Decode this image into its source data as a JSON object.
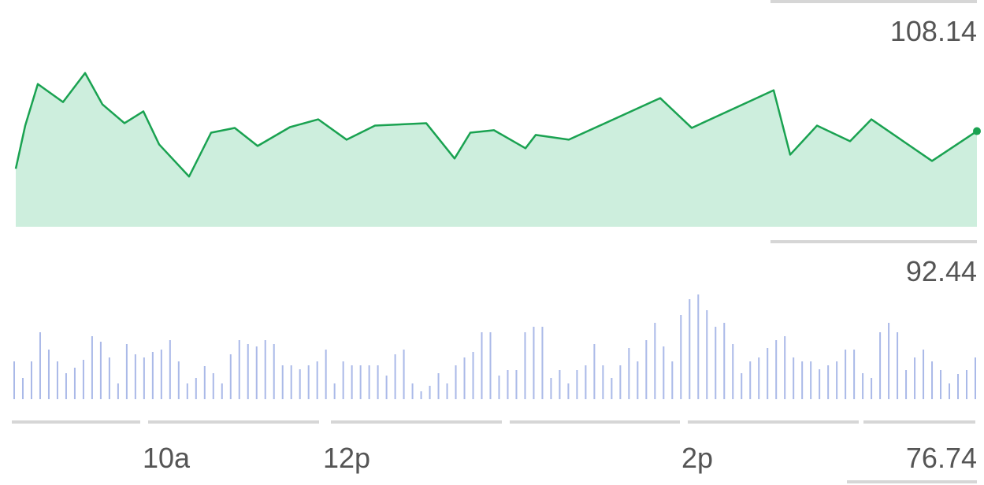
{
  "chart_data": [
    {
      "type": "area",
      "color": "#1aa251",
      "fill": "#cdeedd",
      "x": [
        0,
        12,
        28,
        60,
        88,
        110,
        138,
        162,
        182,
        220,
        248,
        278,
        307,
        348,
        384,
        420,
        456,
        521,
        557,
        577,
        607,
        647,
        660,
        702,
        818,
        858,
        962,
        983,
        1017,
        1059,
        1086,
        1163,
        1220
      ],
      "values": [
        97.21,
        100.03,
        102.75,
        101.57,
        103.47,
        101.42,
        100.19,
        100.96,
        98.8,
        96.7,
        99.57,
        99.88,
        98.7,
        99.93,
        100.44,
        99.11,
        100.03,
        100.19,
        97.88,
        99.57,
        99.73,
        98.55,
        99.42,
        99.11,
        101.83,
        99.88,
        102.34,
        98.13,
        100.03,
        99.01,
        100.44,
        97.72,
        99.67
      ],
      "xlim": [
        0,
        1220
      ],
      "ylim": [
        76.74,
        108.14
      ],
      "yticks": [
        108.14,
        92.44,
        76.74
      ],
      "xticks": [
        {
          "value": 191,
          "label": "10a"
        },
        {
          "value": 420,
          "label": "12p"
        },
        {
          "value": 865,
          "label": "2p"
        }
      ]
    },
    {
      "type": "bar",
      "color": "#aab9e8",
      "ylim": [
        0,
        140
      ],
      "values": [
        48,
        27,
        48,
        85,
        63,
        48,
        33,
        40,
        50,
        80,
        73,
        53,
        20,
        70,
        57,
        53,
        60,
        63,
        75,
        48,
        20,
        27,
        42,
        33,
        20,
        57,
        75,
        70,
        67,
        75,
        70,
        43,
        43,
        38,
        43,
        48,
        63,
        20,
        48,
        43,
        43,
        43,
        43,
        30,
        57,
        63,
        20,
        10,
        17,
        33,
        20,
        43,
        53,
        60,
        85,
        85,
        30,
        37,
        37,
        85,
        92,
        92,
        27,
        37,
        20,
        37,
        43,
        70,
        43,
        27,
        43,
        65,
        48,
        75,
        97,
        67,
        48,
        107,
        127,
        133,
        113,
        92,
        97,
        70,
        33,
        48,
        53,
        65,
        75,
        80,
        53,
        48,
        48,
        38,
        43,
        48,
        63,
        63,
        33,
        27,
        85,
        97,
        85,
        37,
        53,
        63,
        48,
        37,
        20,
        32,
        37,
        53
      ]
    }
  ]
}
